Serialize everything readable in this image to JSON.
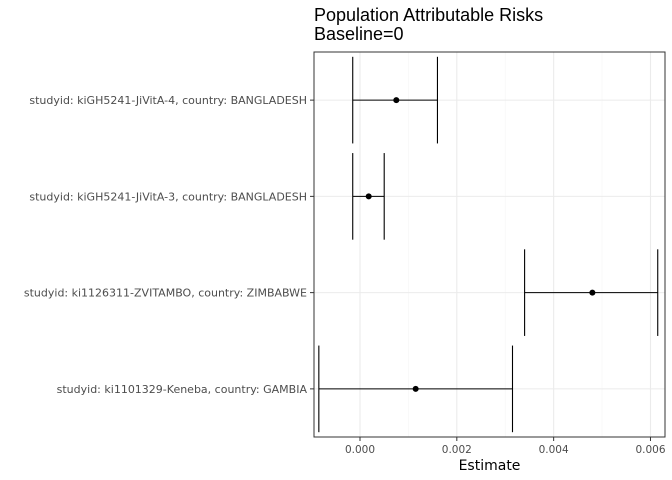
{
  "chart_data": {
    "type": "errorbar",
    "title": "Population Attributable Risks",
    "subtitle": "Baseline=0",
    "xlabel": "Estimate",
    "ylabel": "",
    "xlim": [
      -0.00095,
      0.0063
    ],
    "xticks": [
      0.0,
      0.002,
      0.004,
      0.006
    ],
    "xtick_labels": [
      "0.000",
      "0.002",
      "0.004",
      "0.006"
    ],
    "grid": true,
    "categories": [
      "studyid: kiGH5241-JiVitA-4, country: BANGLADESH",
      "studyid: kiGH5241-JiVitA-3, country: BANGLADESH",
      "studyid: ki1126311-ZVITAMBO, country: ZIMBABWE",
      "studyid: ki1101329-Keneba, country: GAMBIA"
    ],
    "estimates": [
      0.00075,
      0.00018,
      0.0048,
      0.00115
    ],
    "lower": [
      -0.00015,
      -0.00015,
      0.0034,
      -0.00085
    ],
    "upper": [
      0.0016,
      0.0005,
      0.00615,
      0.00315
    ],
    "colors": {
      "panel_border": "#333333",
      "grid_major": "#ebebeb",
      "grid_minor": "#f5f5f5",
      "mark": "#000000"
    }
  }
}
